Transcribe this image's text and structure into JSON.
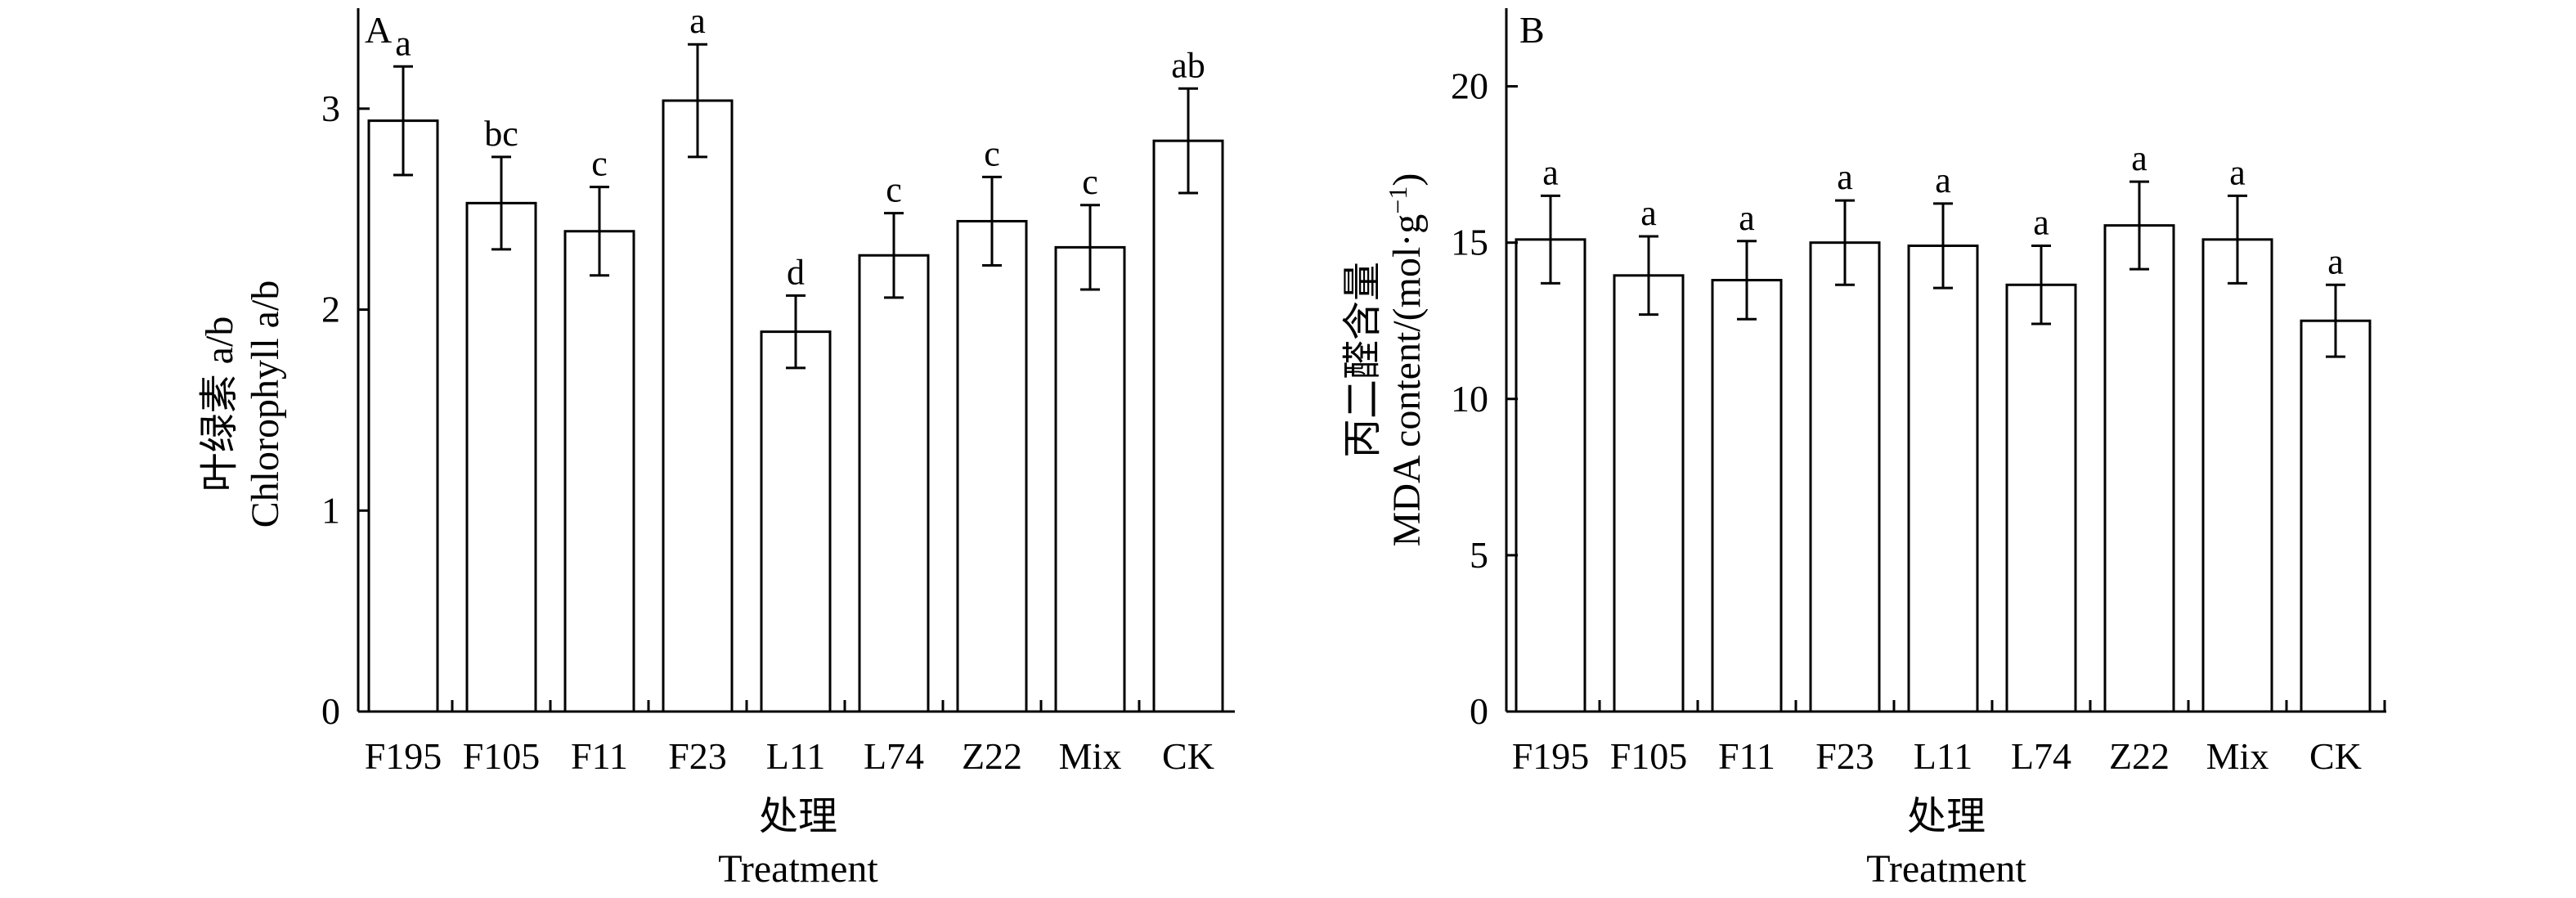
{
  "chart_data": [
    {
      "type": "bar",
      "panel": "A",
      "categories": [
        "F195",
        "F105",
        "F11",
        "F23",
        "L11",
        "L74",
        "Z22",
        "Mix",
        "CK"
      ],
      "values": [
        2.94,
        2.53,
        2.39,
        3.04,
        1.89,
        2.27,
        2.44,
        2.31,
        2.84
      ],
      "errors": [
        0.27,
        0.23,
        0.22,
        0.28,
        0.18,
        0.21,
        0.22,
        0.21,
        0.26
      ],
      "significance": [
        "a",
        "bc",
        "c",
        "a",
        "d",
        "c",
        "c",
        "c",
        "ab"
      ],
      "ylabel_cn": "叶绿素 a/b",
      "ylabel_en": "Chlorophyll a/b",
      "xlabel_cn": "处理",
      "xlabel_en": "Treatment",
      "ylim": [
        0,
        3.5
      ],
      "yticks": [
        0,
        1,
        2,
        3
      ],
      "grid": false,
      "bar_fill": "#ffffff",
      "bar_stroke": "#000000"
    },
    {
      "type": "bar",
      "panel": "B",
      "categories": [
        "F195",
        "F105",
        "F11",
        "F23",
        "L11",
        "L74",
        "Z22",
        "Mix",
        "CK"
      ],
      "values": [
        15.1,
        13.95,
        13.8,
        15.0,
        14.9,
        13.65,
        15.55,
        15.1,
        12.5
      ],
      "errors": [
        1.4,
        1.25,
        1.25,
        1.35,
        1.35,
        1.25,
        1.4,
        1.4,
        1.15
      ],
      "significance": [
        "a",
        "a",
        "a",
        "a",
        "a",
        "a",
        "a",
        "a",
        "a"
      ],
      "ylabel_cn": "丙二醛含量",
      "ylabel_en": "MDA content/(mol·g",
      "ylabel_en_sup": "−1",
      "ylabel_en_end": ")",
      "xlabel_cn": "处理",
      "xlabel_en": "Treatment",
      "ylim": [
        0,
        22.5
      ],
      "yticks": [
        0,
        5,
        10,
        15,
        20
      ],
      "grid": false,
      "bar_fill": "#ffffff",
      "bar_stroke": "#000000"
    }
  ]
}
